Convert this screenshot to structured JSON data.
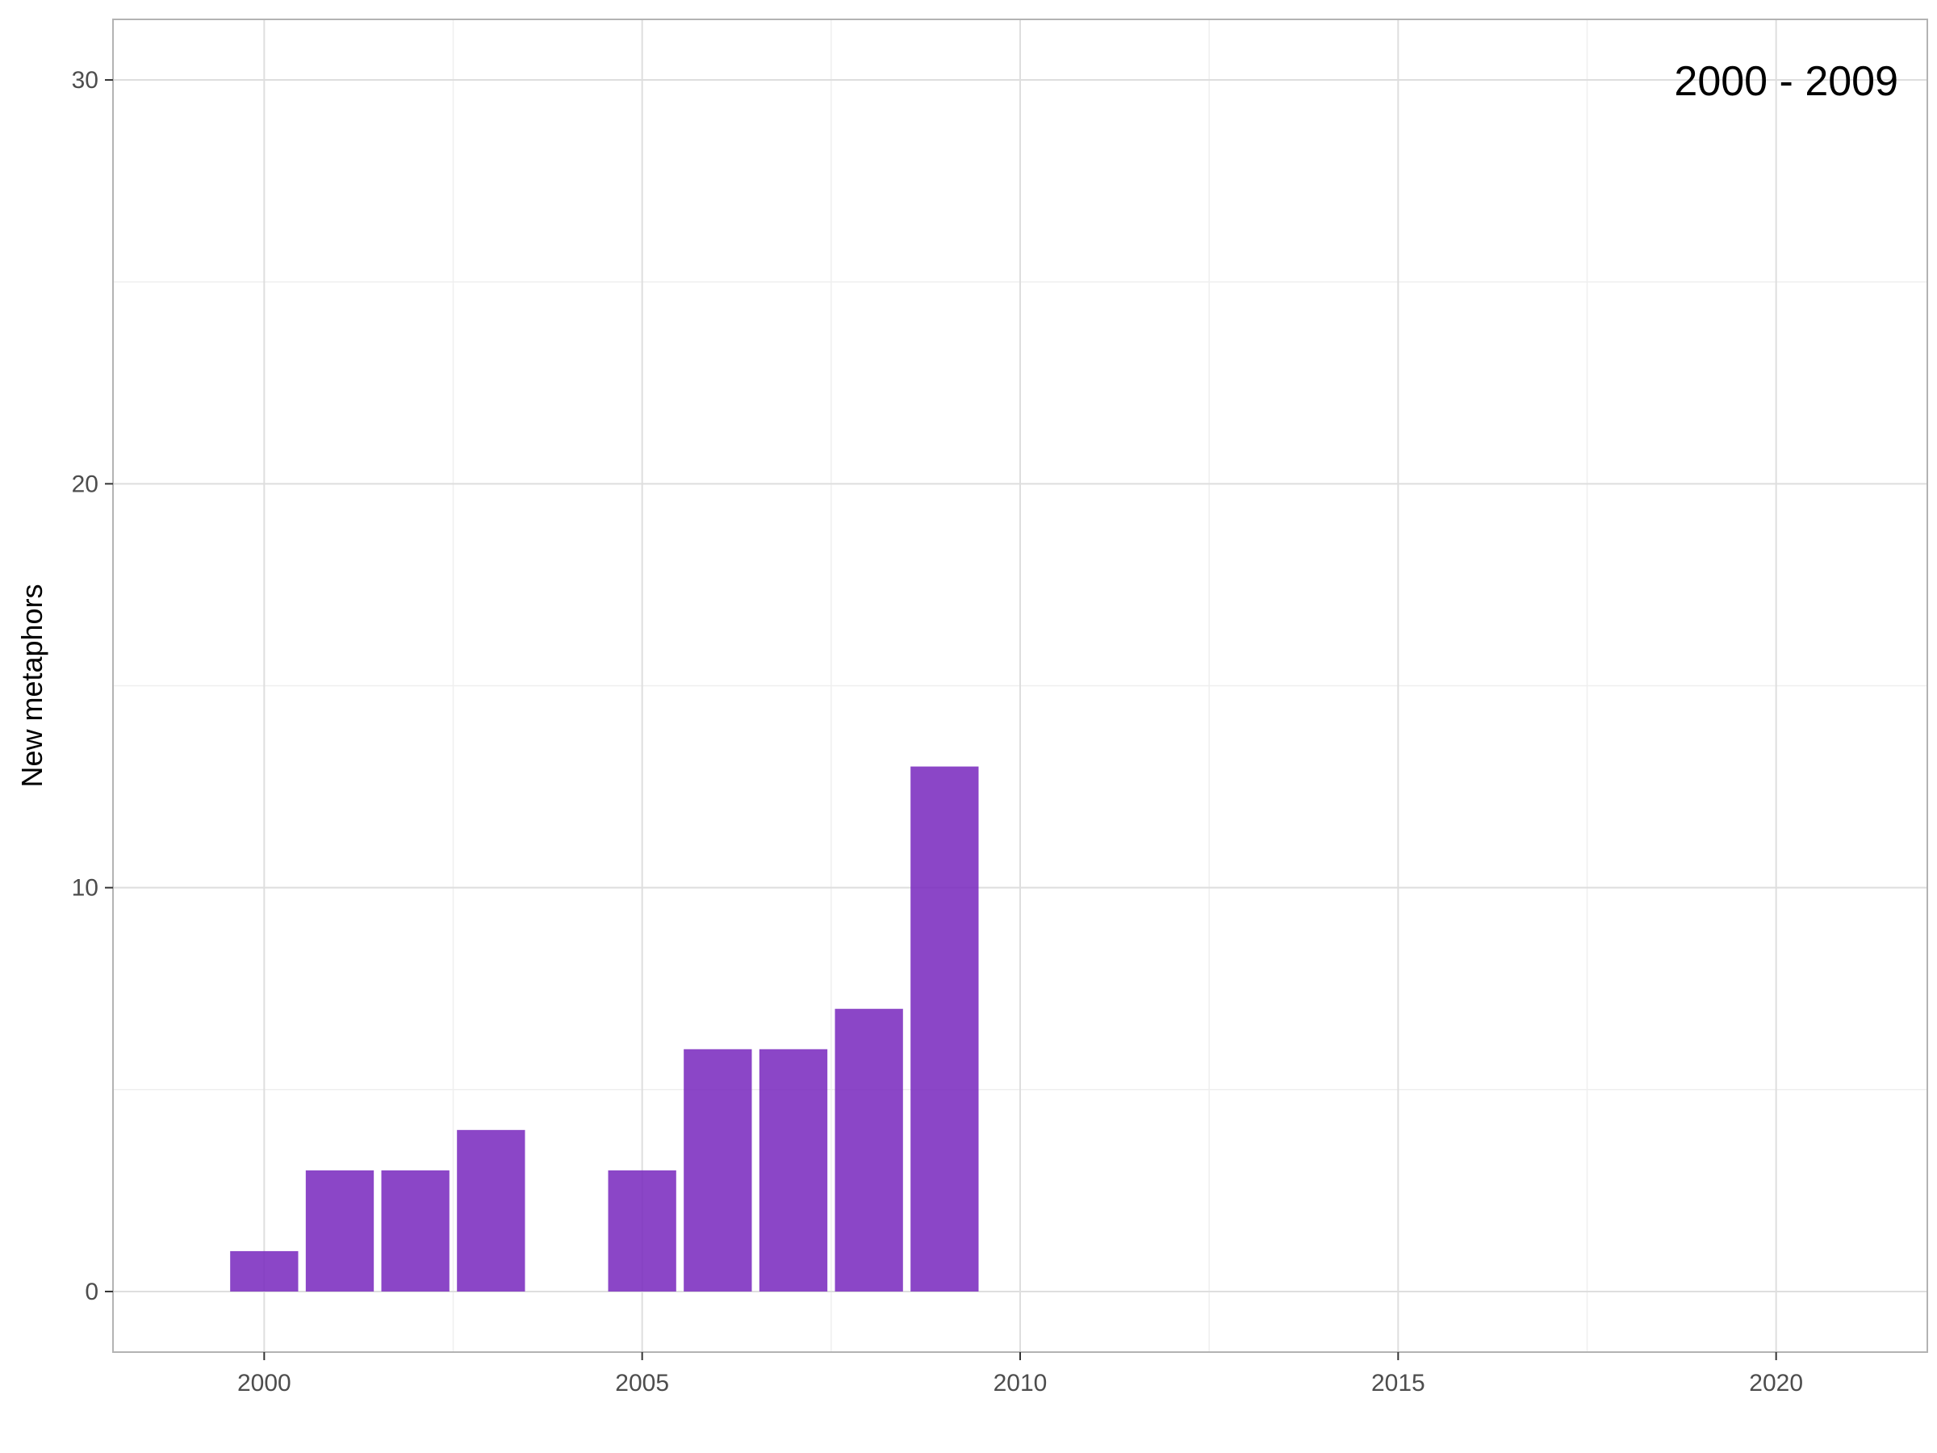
{
  "chart_data": {
    "type": "bar",
    "title": "",
    "xlabel": "",
    "ylabel": "New metaphors",
    "annotation": "2000 - 2009",
    "x": [
      2000,
      2001,
      2002,
      2003,
      2004,
      2005,
      2006,
      2007,
      2008,
      2009
    ],
    "values": [
      1,
      3,
      3,
      4,
      0,
      3,
      6,
      6,
      7,
      13
    ],
    "xlim": [
      1998,
      2022
    ],
    "ylim": [
      -1.5,
      31.5
    ],
    "x_ticks": [
      2000,
      2005,
      2010,
      2015,
      2020
    ],
    "y_ticks": [
      0,
      10,
      20,
      30
    ],
    "x_tick_labels": [
      "2000",
      "2005",
      "2010",
      "2015",
      "2020"
    ],
    "y_tick_labels": [
      "0",
      "10",
      "20",
      "30"
    ],
    "grid": true,
    "legend": "none",
    "colors": {
      "bar": "#7b2cbf",
      "grid_major": "#dedede",
      "grid_minor": "#efefef",
      "panel_border": "#b3b3b3"
    }
  }
}
